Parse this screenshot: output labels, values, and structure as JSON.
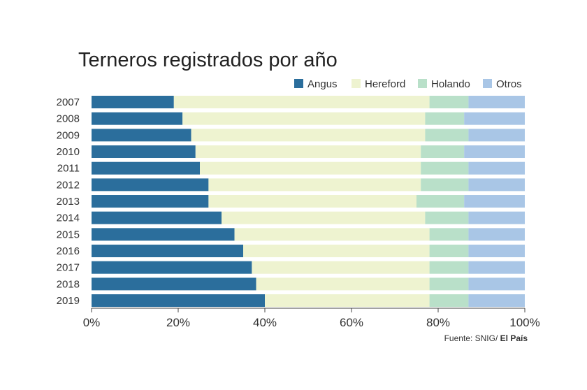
{
  "chart_data": {
    "type": "bar",
    "orientation": "horizontal",
    "stacked": "percent",
    "title": "Terneros registrados por año",
    "categories": [
      "2007",
      "2008",
      "2009",
      "2010",
      "2011",
      "2012",
      "2013",
      "2014",
      "2015",
      "2016",
      "2017",
      "2018",
      "2019"
    ],
    "series": [
      {
        "name": "Angus",
        "color": "#2b6e9c",
        "values": [
          19,
          21,
          23,
          24,
          25,
          27,
          27,
          30,
          33,
          35,
          37,
          38,
          40
        ]
      },
      {
        "name": "Hereford",
        "color": "#eef3d0",
        "values": [
          59,
          56,
          54,
          52,
          51,
          49,
          48,
          47,
          45,
          43,
          41,
          40,
          38
        ]
      },
      {
        "name": "Holando",
        "color": "#b9e0c9",
        "values": [
          9,
          9,
          10,
          10,
          11,
          11,
          11,
          10,
          9,
          9,
          9,
          9,
          9
        ]
      },
      {
        "name": "Otros",
        "color": "#a9c6e6",
        "values": [
          13,
          14,
          13,
          14,
          13,
          13,
          14,
          13,
          13,
          13,
          13,
          13,
          13
        ]
      }
    ],
    "xlim": [
      0,
      100
    ],
    "xticks": [
      "0%",
      "20%",
      "40%",
      "60%",
      "80%",
      "100%"
    ],
    "legend_position": "top-right",
    "grid": false,
    "source_label": "Fuente: SNIG/",
    "source_outlet": "El País"
  }
}
